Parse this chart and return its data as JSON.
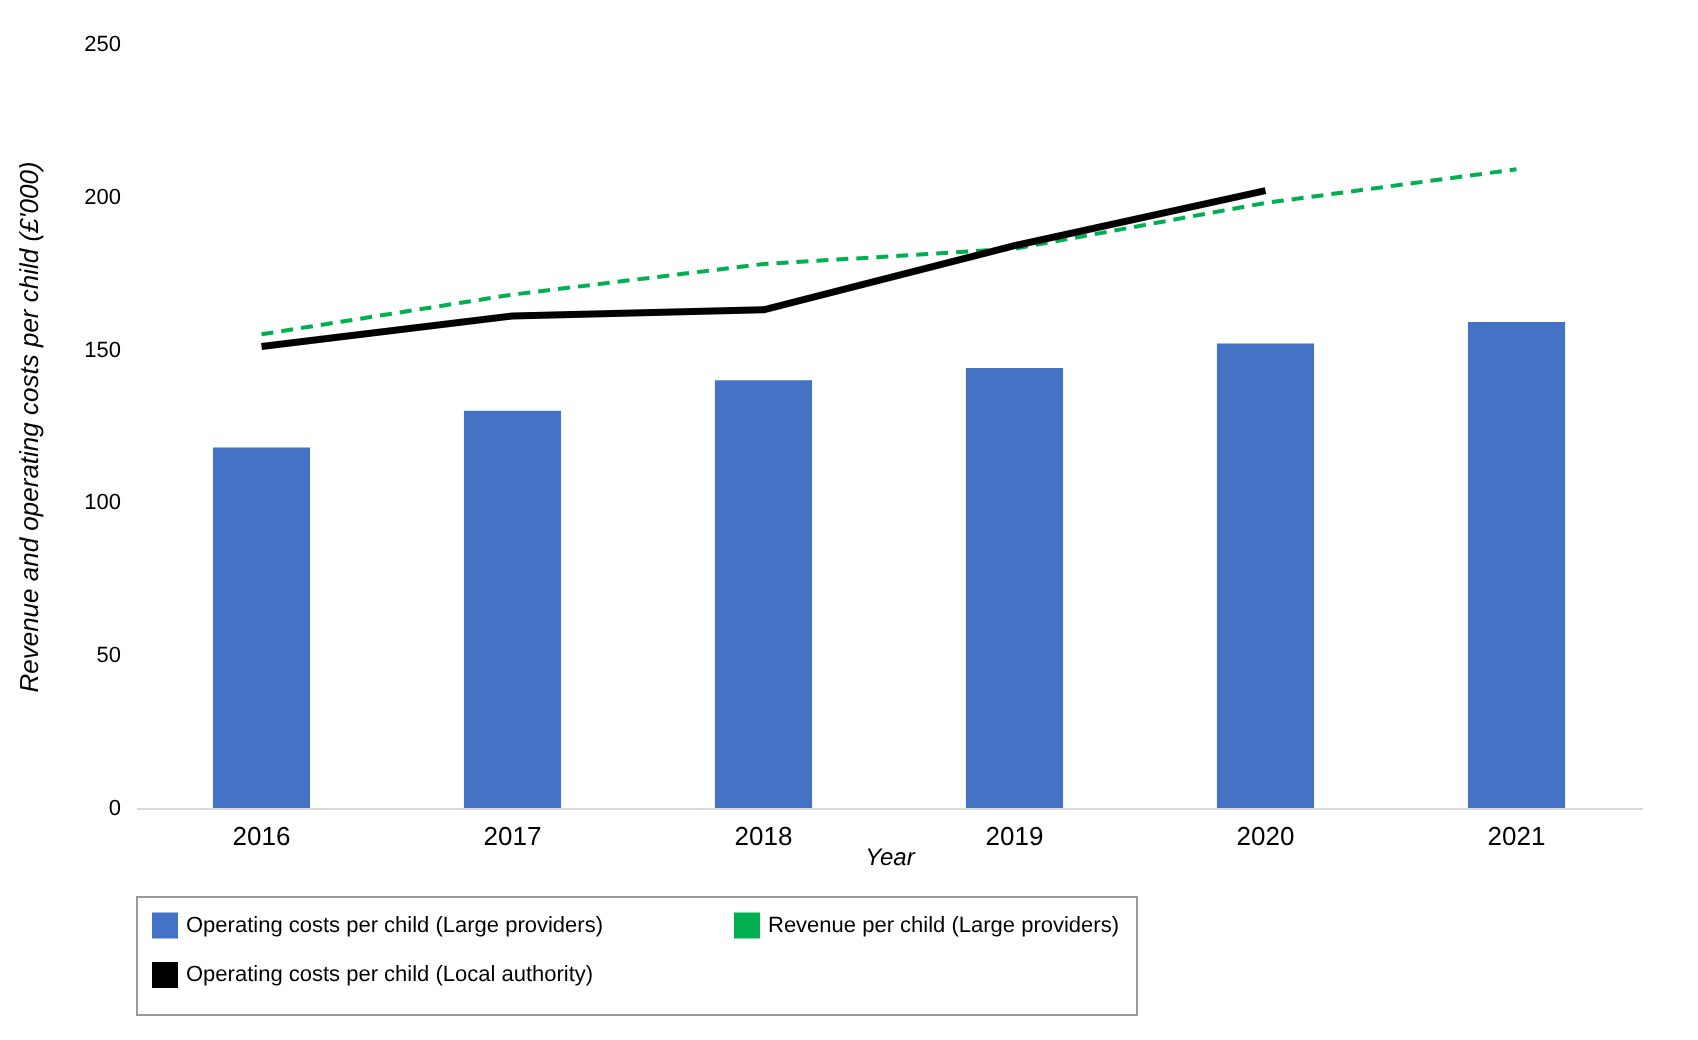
{
  "chart_data": {
    "type": "bar",
    "xlabel": "Year",
    "ylabel": "Revenue and operating costs per child (£'000)",
    "categories": [
      "2016",
      "2017",
      "2018",
      "2019",
      "2020",
      "2021"
    ],
    "series": [
      {
        "name": "Operating costs per child (Large providers)",
        "color": "#4472c4",
        "values": [
          118,
          130,
          140,
          144,
          152,
          159
        ]
      },
      {
        "name": "Revenue per child (Large providers)",
        "type": "line",
        "line_style": "dashed",
        "color": "#00b050",
        "values": [
          155,
          168,
          178,
          183,
          198,
          209
        ]
      },
      {
        "name": "Operating costs per child (Local authority)",
        "type": "line",
        "line_style": "solid",
        "color": "#000000",
        "values": [
          151,
          161,
          163,
          184,
          202,
          null
        ]
      }
    ],
    "ylim": [
      0,
      250
    ],
    "yticks": [
      0,
      50,
      100,
      150,
      200,
      250
    ],
    "grid": false,
    "legend": "bottom",
    "marker": "none"
  }
}
